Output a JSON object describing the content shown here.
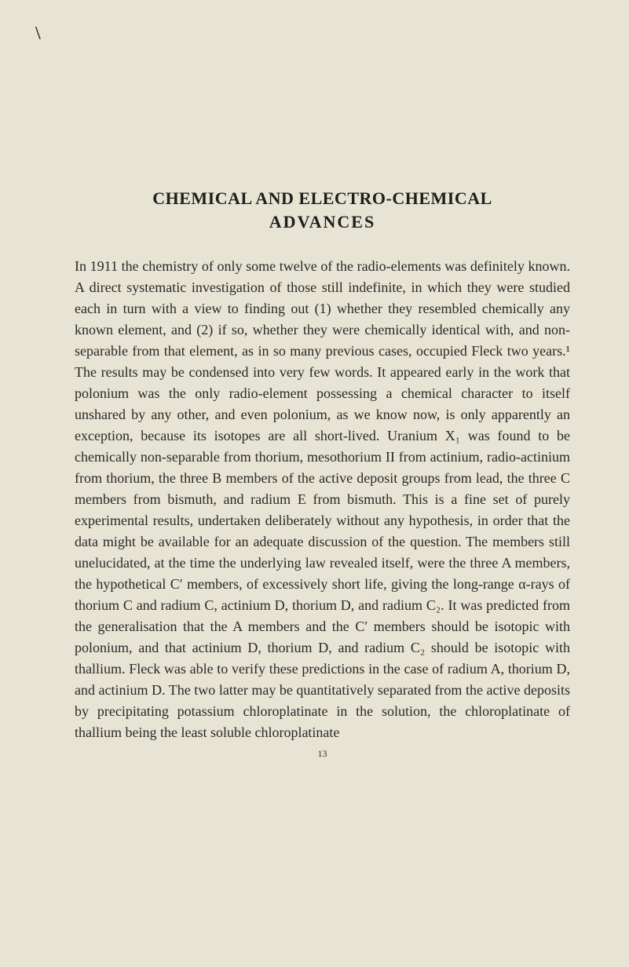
{
  "margin_mark": "\\",
  "title": {
    "main": "CHEMICAL AND ELECTRO-CHEMICAL",
    "sub": "ADVANCES"
  },
  "body": "In 1911 the chemistry of only some twelve of the radio-elements was definitely known. A direct systematic investigation of those still indefinite, in which they were studied each in turn with a view to finding out (1) whether they resembled chemically any known element, and (2) if so, whether they were chemically identical with, and non-separable from that element, as in so many previous cases, occupied Fleck two years.¹ The results may be condensed into very few words. It appeared early in the work that polonium was the only radio-element possessing a chemical character to itself unshared by any other, and even polonium, as we know now, is only apparently an exception, because its isotopes are all short-lived. Uranium X₁ was found to be chemically non-separable from thorium, mesothorium II from actinium, radio-actinium from thorium, the three B members of the active deposit groups from lead, the three C members from bismuth, and radium E from bismuth. This is a fine set of purely experimental results, undertaken deliberately without any hypothesis, in order that the data might be available for an adequate discussion of the question. The members still unelucidated, at the time the underlying law revealed itself, were the three A members, the hypothetical C′ members, of excessively short life, giving the long-range α-rays of thorium C and radium C, actinium D, thorium D, and radium C₂. It was predicted from the generalisation that the A members and the C′ members should be isotopic with polonium, and that actinium D, thorium D, and radium C₂ should be isotopic with thallium. Fleck was able to verify these predictions in the case of radium A, thorium D, and actinium D. The two latter may be quantitatively separated from the active deposits by precipitating potassium chloroplatinate in the solution, the chloroplatinate of thallium being the least soluble chloroplatinate",
  "page_number": "13"
}
